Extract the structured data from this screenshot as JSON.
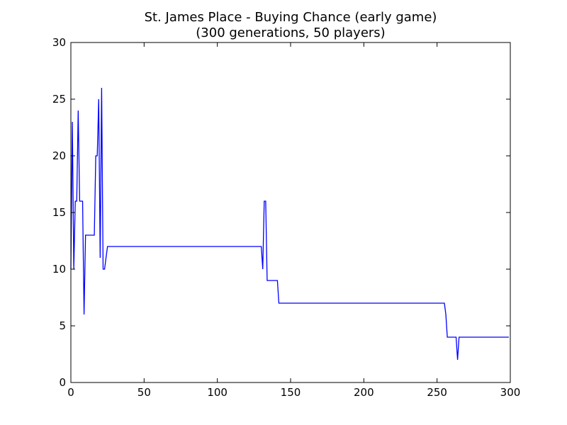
{
  "chart_data": {
    "type": "line",
    "title": "St. James Place - Buying Chance (early game)",
    "subtitle": "(300 generations, 50 players)",
    "xlim": [
      0,
      300
    ],
    "ylim": [
      0,
      30
    ],
    "x_ticks": [
      0,
      50,
      100,
      150,
      200,
      250,
      300
    ],
    "y_ticks": [
      0,
      5,
      10,
      15,
      20,
      25,
      30
    ],
    "grid": false,
    "series": [
      {
        "color": "#0000ff",
        "points": [
          [
            0,
            10
          ],
          [
            1,
            23
          ],
          [
            2,
            10
          ],
          [
            3,
            16
          ],
          [
            4,
            16
          ],
          [
            5,
            24
          ],
          [
            6,
            16
          ],
          [
            8,
            16
          ],
          [
            9,
            6
          ],
          [
            10,
            13
          ],
          [
            16,
            13
          ],
          [
            17,
            20
          ],
          [
            18,
            20
          ],
          [
            19,
            25
          ],
          [
            20,
            11
          ],
          [
            21,
            26
          ],
          [
            22,
            10
          ],
          [
            23,
            10
          ],
          [
            25,
            12
          ],
          [
            130,
            12
          ],
          [
            131,
            10
          ],
          [
            132,
            16
          ],
          [
            133,
            16
          ],
          [
            134,
            9
          ],
          [
            141,
            9
          ],
          [
            142,
            7
          ],
          [
            255,
            7
          ],
          [
            256,
            6
          ],
          [
            257,
            4
          ],
          [
            263,
            4
          ],
          [
            264,
            2
          ],
          [
            265,
            4
          ],
          [
            299,
            4
          ]
        ]
      }
    ]
  }
}
